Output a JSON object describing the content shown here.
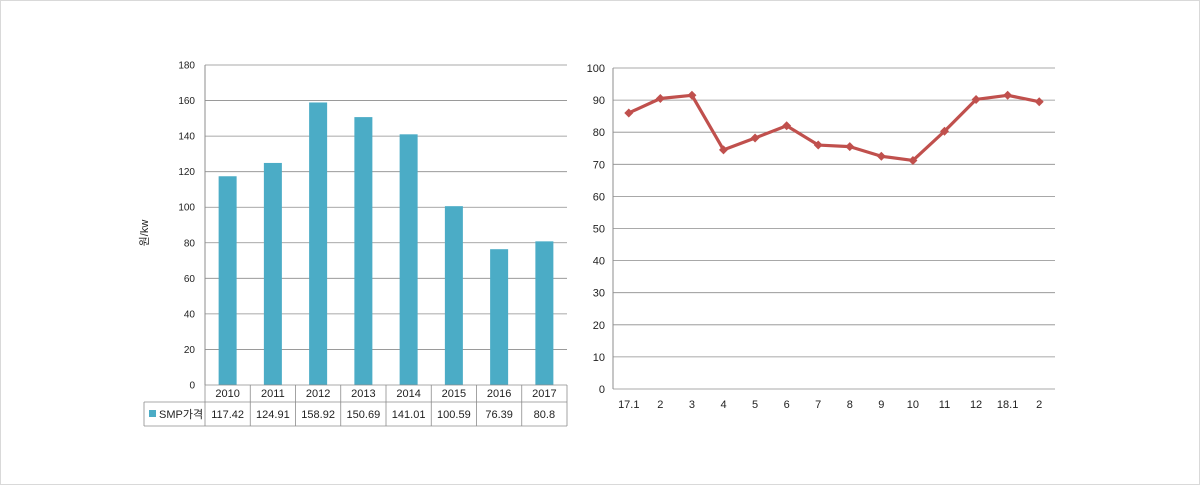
{
  "chart_data": [
    {
      "type": "bar",
      "title": "",
      "xlabel": "",
      "ylabel": "원/kw",
      "ylim": [
        0,
        180
      ],
      "yticks": [
        0,
        20,
        40,
        60,
        80,
        100,
        120,
        140,
        160,
        180
      ],
      "categories": [
        "2010",
        "2011",
        "2012",
        "2013",
        "2014",
        "2015",
        "2016",
        "2017"
      ],
      "series": [
        {
          "name": "SMP가격",
          "values": [
            117.42,
            124.91,
            158.92,
            150.69,
            141.01,
            100.59,
            76.39,
            80.8
          ],
          "value_labels": [
            "117.42",
            "124.91",
            "158.92",
            "150.69",
            "141.01",
            "100.59",
            "76.39",
            "80.8"
          ]
        }
      ],
      "color": "#4bacc6",
      "grid": true,
      "legend": "data-table"
    },
    {
      "type": "line",
      "title": "",
      "xlabel": "",
      "ylabel": "",
      "ylim": [
        0,
        100
      ],
      "yticks": [
        0,
        10,
        20,
        30,
        40,
        50,
        60,
        70,
        80,
        90,
        100
      ],
      "categories": [
        "17.1",
        "2",
        "3",
        "4",
        "5",
        "6",
        "7",
        "8",
        "9",
        "10",
        "11",
        "12",
        "18.1",
        "2"
      ],
      "series": [
        {
          "values": [
            86,
            90.5,
            91.5,
            74.5,
            78.2,
            82,
            76,
            75.5,
            72.5,
            71.2,
            80.3,
            90.2,
            91.5,
            89.5
          ]
        }
      ],
      "color": "#c0504d",
      "grid": true,
      "legend": "none"
    }
  ]
}
